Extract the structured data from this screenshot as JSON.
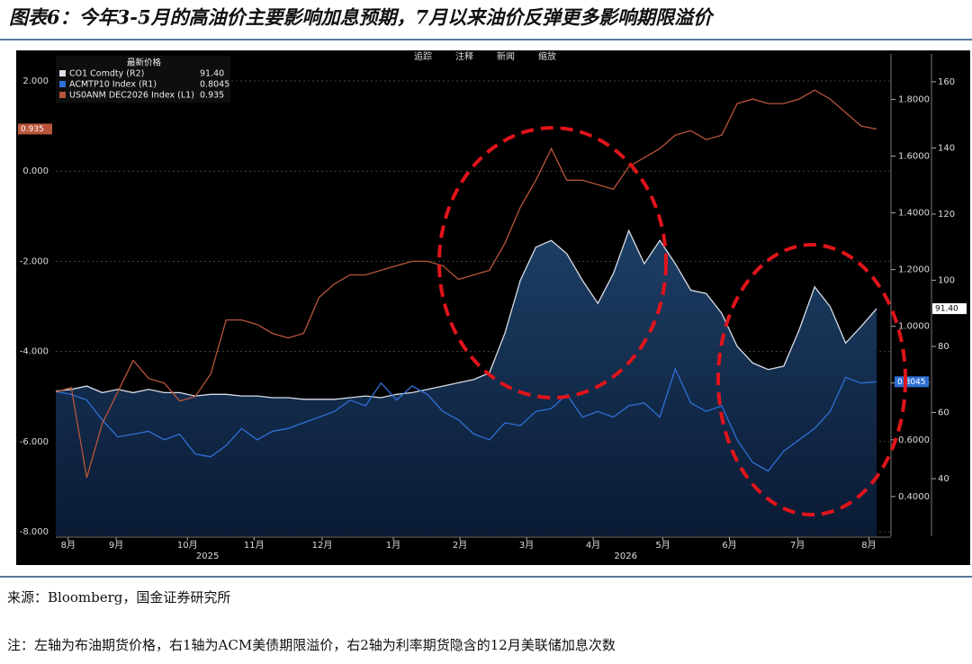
{
  "header": {
    "title": "图表6：今年3-5月的高油价主要影响加息预期，7月以来油价反弹更多影响期限溢价"
  },
  "chart_data": {
    "type": "line",
    "legend_title": "最新价格",
    "toolbar": [
      "追踪",
      "注释",
      "新闻",
      "缩放"
    ],
    "xlim": [
      0,
      53
    ],
    "xticks": [
      {
        "value": 0.8,
        "label": "8月"
      },
      {
        "value": 3.9,
        "label": "9月"
      },
      {
        "value": 8.5,
        "label": "10月"
      },
      {
        "value": 12.8,
        "label": "11月"
      },
      {
        "value": 17.2,
        "label": "12月"
      },
      {
        "value": 21.8,
        "label": "1月"
      },
      {
        "value": 26.1,
        "label": "2月"
      },
      {
        "value": 30.4,
        "label": "3月"
      },
      {
        "value": 34.7,
        "label": "4月"
      },
      {
        "value": 39.2,
        "label": "5月"
      },
      {
        "value": 43.5,
        "label": "6月"
      },
      {
        "value": 47.9,
        "label": "7月"
      },
      {
        "value": 52.5,
        "label": "8月"
      }
    ],
    "years": [
      {
        "value": 9.8,
        "label": "2025"
      },
      {
        "value": 36.8,
        "label": "2026"
      }
    ],
    "ylim": [
      -8.1,
      2.6
    ],
    "yticks": [
      {
        "value": 2,
        "label": "2.000"
      },
      {
        "value": 0,
        "label": "0.000"
      },
      {
        "value": -2,
        "label": "-2.000"
      },
      {
        "value": -4,
        "label": "-4.000"
      },
      {
        "value": -6,
        "label": "-6.000"
      },
      {
        "value": -8,
        "label": "-8.000"
      }
    ],
    "y2lim": [
      0.26,
      1.96
    ],
    "y2ticks": [
      {
        "value": 0.4,
        "label": "0.4000"
      },
      {
        "value": 0.6,
        "label": "0.6000"
      },
      {
        "value": 0.8,
        "label": "0.8000"
      },
      {
        "value": 1.0,
        "label": "1.0000"
      },
      {
        "value": 1.2,
        "label": "1.2000"
      },
      {
        "value": 1.4,
        "label": "1.4000"
      },
      {
        "value": 1.6,
        "label": "1.6000"
      },
      {
        "value": 1.8,
        "label": "1.8000"
      }
    ],
    "y3lim": [
      22.6,
      168.4
    ],
    "y3ticks": [
      40,
      60,
      80,
      100,
      120,
      140,
      160
    ],
    "series": [
      {
        "name": "CO1 Comdty  (R2)",
        "color": "#d8dde6",
        "axis": "y3",
        "area": true,
        "last": {
          "value": 91.4,
          "label": "91.40"
        },
        "values": [
          66.5,
          67,
          68,
          66,
          67,
          66,
          67,
          66,
          66,
          65,
          65.5,
          65.5,
          65,
          65,
          64.5,
          64.5,
          64,
          64,
          64,
          64.5,
          65,
          64.5,
          65.5,
          66,
          67,
          68,
          69,
          70,
          72,
          84,
          100,
          110,
          112,
          108,
          100,
          93,
          102,
          115,
          105,
          112,
          105,
          97,
          96,
          90,
          80,
          75,
          73,
          74,
          85,
          98,
          92,
          81,
          86,
          91.4
        ]
      },
      {
        "name": "ACMTP10 Index  (R1)",
        "color": "#2f6fd6",
        "axis": "y2",
        "last": 0.8045,
        "values": [
          0.77,
          0.76,
          0.74,
          0.67,
          0.61,
          0.62,
          0.63,
          0.6,
          0.62,
          0.55,
          0.54,
          0.58,
          0.64,
          0.6,
          0.63,
          0.64,
          0.66,
          0.68,
          0.7,
          0.74,
          0.72,
          0.8,
          0.74,
          0.79,
          0.76,
          0.7,
          0.67,
          0.62,
          0.6,
          0.66,
          0.65,
          0.7,
          0.71,
          0.76,
          0.68,
          0.7,
          0.68,
          0.72,
          0.73,
          0.68,
          0.85,
          0.73,
          0.7,
          0.72,
          0.6,
          0.52,
          0.49,
          0.56,
          0.6,
          0.64,
          0.7,
          0.82,
          0.8,
          0.8045
        ]
      },
      {
        "name": "US0ANM DEC2026 Index  (L1)",
        "color": "#b8553a",
        "axis": "y",
        "last": 0.935,
        "values": [
          -4.9,
          -4.8,
          -6.8,
          -5.6,
          -4.9,
          -4.2,
          -4.6,
          -4.7,
          -5.1,
          -5.0,
          -4.5,
          -3.3,
          -3.3,
          -3.4,
          -3.6,
          -3.7,
          -3.6,
          -2.8,
          -2.5,
          -2.3,
          -2.3,
          -2.2,
          -2.1,
          -2.0,
          -2.0,
          -2.1,
          -2.4,
          -2.3,
          -2.2,
          -1.6,
          -0.8,
          -0.2,
          0.5,
          -0.2,
          -0.2,
          -0.3,
          -0.4,
          0.1,
          0.3,
          0.5,
          0.8,
          0.9,
          0.7,
          0.8,
          1.5,
          1.6,
          1.5,
          1.5,
          1.6,
          1.8,
          1.6,
          1.3,
          1.0,
          0.935
        ]
      }
    ]
  },
  "footer": {
    "source": "来源：Bloomberg，国金证券研究所",
    "note": "注：左轴为布油期货价格，右1轴为ACM美债期限溢价，右2轴为利率期货隐含的12月美联储加息次数"
  }
}
